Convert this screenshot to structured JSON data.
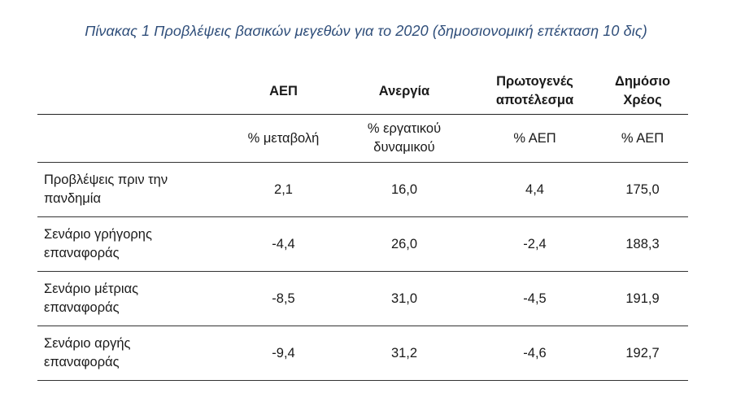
{
  "caption": "Πίνακας 1 Προβλέψεις βασικών μεγεθών για το 2020 (δημοσιονομική επέκταση 10 δις)",
  "headers": [
    {
      "lines": [
        "ΑΕΠ"
      ]
    },
    {
      "lines": [
        "Ανεργία"
      ]
    },
    {
      "lines": [
        "Πρωτογενές",
        "αποτέλεσμα"
      ]
    },
    {
      "lines": [
        "Δημόσιο",
        "Χρέος"
      ]
    }
  ],
  "units": [
    {
      "lines": [
        "% μεταβολή"
      ]
    },
    {
      "lines": [
        "% εργατικού",
        "δυναμικού"
      ]
    },
    {
      "lines": [
        "% ΑΕΠ"
      ]
    },
    {
      "lines": [
        "% ΑΕΠ"
      ]
    }
  ],
  "rows": [
    {
      "label": [
        "Προβλέψεις πριν την",
        "πανδημία"
      ],
      "values": [
        "2,1",
        "16,0",
        "4,4",
        "175,0"
      ]
    },
    {
      "label": [
        "Σενάριο γρήγορης",
        "επαναφοράς"
      ],
      "values": [
        "-4,4",
        "26,0",
        "-2,4",
        "188,3"
      ]
    },
    {
      "label": [
        "Σενάριο μέτριας",
        "επαναφοράς"
      ],
      "values": [
        "-8,5",
        "31,0",
        "-4,5",
        "191,9"
      ]
    },
    {
      "label": [
        "Σενάριο αργής",
        "επαναφοράς"
      ],
      "values": [
        "-9,4",
        "31,2",
        "-4,6",
        "192,7"
      ]
    }
  ]
}
